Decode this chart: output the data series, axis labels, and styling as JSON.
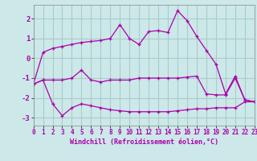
{
  "xlabel": "Windchill (Refroidissement éolien,°C)",
  "background_color": "#cce8e8",
  "grid_color": "#aacccc",
  "line_color": "#aa00aa",
  "xlim": [
    0,
    23
  ],
  "ylim": [
    -3.4,
    2.7
  ],
  "xticks": [
    0,
    1,
    2,
    3,
    4,
    5,
    6,
    7,
    8,
    9,
    10,
    11,
    12,
    13,
    14,
    15,
    16,
    17,
    18,
    19,
    20,
    21,
    22,
    23
  ],
  "yticks": [
    -3,
    -2,
    -1,
    0,
    1,
    2
  ],
  "line1_x": [
    0,
    1,
    2,
    3,
    4,
    5,
    6,
    7,
    8,
    9,
    10,
    11,
    12,
    13,
    14,
    15,
    16,
    17,
    18,
    19,
    20,
    21,
    22,
    23
  ],
  "line1_y": [
    -1.3,
    0.3,
    0.5,
    0.6,
    0.7,
    0.8,
    0.85,
    0.9,
    1.0,
    1.7,
    1.0,
    0.7,
    1.35,
    1.4,
    1.3,
    2.4,
    1.9,
    1.1,
    0.4,
    -0.3,
    -1.8,
    -0.9,
    -2.1,
    -2.2
  ],
  "line2_x": [
    0,
    1,
    2,
    3,
    4,
    5,
    6,
    7,
    8,
    9,
    10,
    11,
    12,
    13,
    14,
    15,
    16,
    17,
    18,
    19,
    20,
    21,
    22,
    23
  ],
  "line2_y": [
    -1.3,
    -1.1,
    -1.1,
    -1.1,
    -1.0,
    -0.6,
    -1.1,
    -1.2,
    -1.1,
    -1.1,
    -1.1,
    -1.0,
    -1.0,
    -1.0,
    -1.0,
    -1.0,
    -0.95,
    -0.9,
    -1.8,
    -1.85,
    -1.85,
    -1.0,
    -2.1,
    -2.2
  ],
  "line3_x": [
    0,
    1,
    2,
    3,
    4,
    5,
    6,
    7,
    8,
    9,
    10,
    11,
    12,
    13,
    14,
    15,
    16,
    17,
    18,
    19,
    20,
    21,
    22,
    23
  ],
  "line3_y": [
    -1.3,
    -1.1,
    -2.3,
    -2.9,
    -2.5,
    -2.3,
    -2.4,
    -2.5,
    -2.6,
    -2.65,
    -2.7,
    -2.7,
    -2.7,
    -2.7,
    -2.7,
    -2.65,
    -2.6,
    -2.55,
    -2.55,
    -2.5,
    -2.5,
    -2.5,
    -2.2,
    -2.2
  ]
}
